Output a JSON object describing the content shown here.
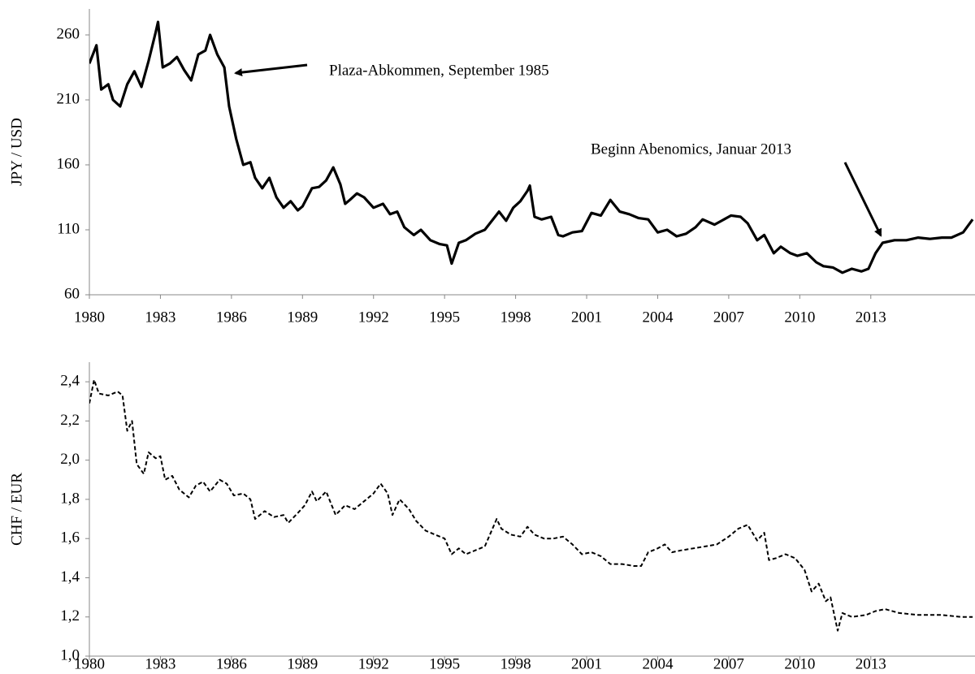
{
  "chart_data": [
    {
      "type": "line",
      "y_label": "JPY / USD",
      "x": [
        1980,
        1980.3,
        1980.5,
        1980.8,
        1981,
        1981.3,
        1981.6,
        1981.9,
        1982.2,
        1982.5,
        1982.8,
        1982.9,
        1983.1,
        1983.4,
        1983.7,
        1984,
        1984.3,
        1984.6,
        1984.9,
        1985.1,
        1985.4,
        1985.7,
        1985.9,
        1986.2,
        1986.5,
        1986.8,
        1987,
        1987.3,
        1987.6,
        1987.9,
        1988.2,
        1988.5,
        1988.8,
        1989,
        1989.4,
        1989.7,
        1990,
        1990.3,
        1990.6,
        1990.8,
        1991,
        1991.3,
        1991.6,
        1992,
        1992.4,
        1992.7,
        1993,
        1993.3,
        1993.7,
        1994,
        1994.4,
        1994.8,
        1995.1,
        1995.3,
        1995.6,
        1995.9,
        1996.3,
        1996.7,
        1997,
        1997.3,
        1997.6,
        1997.9,
        1998.2,
        1998.5,
        1998.6,
        1998.8,
        1999.1,
        1999.5,
        1999.8,
        2000,
        2000.4,
        2000.8,
        2001.2,
        2001.6,
        2002,
        2002.4,
        2002.8,
        2003.2,
        2003.6,
        2004,
        2004.4,
        2004.8,
        2005.2,
        2005.6,
        2005.9,
        2006.4,
        2006.8,
        2007.1,
        2007.5,
        2007.8,
        2008.2,
        2008.5,
        2008.9,
        2009.2,
        2009.6,
        2009.9,
        2010.3,
        2010.7,
        2011,
        2011.4,
        2011.8,
        2012.2,
        2012.6,
        2012.9,
        2013.2,
        2013.5,
        2014,
        2014.5,
        2015,
        2015.5,
        2016,
        2016.4,
        2016.9,
        2017.3
      ],
      "series": [
        {
          "color": "#000000",
          "style": "solid",
          "values": [
            238,
            252,
            218,
            222,
            210,
            205,
            222,
            232,
            220,
            240,
            262,
            270,
            235,
            238,
            243,
            233,
            225,
            245,
            248,
            260,
            245,
            235,
            205,
            180,
            160,
            162,
            150,
            142,
            150,
            135,
            127,
            132,
            125,
            128,
            142,
            143,
            148,
            158,
            145,
            130,
            133,
            138,
            135,
            127,
            130,
            122,
            124,
            112,
            106,
            110,
            102,
            99,
            98,
            84,
            100,
            102,
            107,
            110,
            117,
            124,
            117,
            127,
            132,
            140,
            144,
            120,
            118,
            120,
            106,
            105,
            108,
            109,
            123,
            121,
            133,
            124,
            122,
            119,
            118,
            108,
            110,
            105,
            107,
            112,
            118,
            114,
            118,
            121,
            120,
            115,
            102,
            106,
            92,
            97,
            92,
            90,
            92,
            85,
            82,
            81,
            77,
            80,
            78,
            80,
            92,
            100,
            102,
            102,
            104,
            103,
            104,
            104,
            108,
            118
          ]
        }
      ],
      "xlim": [
        1980,
        2017.4
      ],
      "xticks": [
        1980,
        1983,
        1986,
        1989,
        1992,
        1995,
        1998,
        2001,
        2004,
        2007,
        2010,
        2013
      ],
      "ylim": [
        60,
        280
      ],
      "yticks": [
        60,
        110,
        160,
        210,
        260
      ],
      "annotations": [
        "Plaza-Abkommen, September 1985",
        "Beginn Abenomics, Januar 2013"
      ]
    },
    {
      "type": "line",
      "y_label": "CHF / EUR",
      "x": [
        1980,
        1980.2,
        1980.4,
        1980.8,
        1981.2,
        1981.4,
        1981.6,
        1981.8,
        1982,
        1982.3,
        1982.5,
        1982.8,
        1983,
        1983.2,
        1983.5,
        1983.8,
        1984.2,
        1984.5,
        1984.8,
        1985.1,
        1985.5,
        1985.8,
        1986.1,
        1986.5,
        1986.8,
        1987,
        1987.4,
        1987.8,
        1988.2,
        1988.4,
        1988.8,
        1989.1,
        1989.4,
        1989.6,
        1990,
        1990.4,
        1990.8,
        1991.2,
        1991.6,
        1992,
        1992.3,
        1992.6,
        1992.8,
        1993.1,
        1993.5,
        1993.8,
        1994.2,
        1994.6,
        1995,
        1995.3,
        1995.6,
        1995.9,
        1996.3,
        1996.7,
        1997.2,
        1997.4,
        1997.8,
        1998.2,
        1998.5,
        1998.8,
        1999.2,
        1999.6,
        2000,
        2000.4,
        2000.8,
        2001.2,
        2001.6,
        2002,
        2002.5,
        2003,
        2003.3,
        2003.6,
        2004,
        2004.3,
        2004.6,
        2005,
        2005.5,
        2006,
        2006.5,
        2007,
        2007.4,
        2007.8,
        2008.2,
        2008.5,
        2008.7,
        2009,
        2009.4,
        2009.8,
        2010.2,
        2010.5,
        2010.8,
        2011.1,
        2011.3,
        2011.6,
        2011.8,
        2012.2,
        2012.8,
        2013.2,
        2013.6,
        2014.2,
        2015,
        2016,
        2016.8,
        2017.3
      ],
      "series": [
        {
          "color": "#000000",
          "style": "dashed",
          "values": [
            2.29,
            2.41,
            2.34,
            2.33,
            2.35,
            2.33,
            2.15,
            2.2,
            1.98,
            1.93,
            2.04,
            2.01,
            2.02,
            1.9,
            1.92,
            1.85,
            1.81,
            1.87,
            1.89,
            1.84,
            1.9,
            1.88,
            1.82,
            1.83,
            1.8,
            1.7,
            1.74,
            1.71,
            1.72,
            1.68,
            1.73,
            1.77,
            1.84,
            1.79,
            1.84,
            1.72,
            1.77,
            1.75,
            1.79,
            1.83,
            1.88,
            1.83,
            1.72,
            1.8,
            1.75,
            1.69,
            1.64,
            1.62,
            1.6,
            1.52,
            1.55,
            1.52,
            1.54,
            1.56,
            1.7,
            1.65,
            1.62,
            1.61,
            1.66,
            1.62,
            1.6,
            1.6,
            1.61,
            1.57,
            1.52,
            1.53,
            1.51,
            1.47,
            1.47,
            1.46,
            1.46,
            1.53,
            1.55,
            1.57,
            1.53,
            1.54,
            1.55,
            1.56,
            1.57,
            1.61,
            1.65,
            1.67,
            1.59,
            1.63,
            1.49,
            1.5,
            1.52,
            1.5,
            1.44,
            1.33,
            1.37,
            1.28,
            1.3,
            1.13,
            1.22,
            1.2,
            1.21,
            1.23,
            1.24,
            1.22,
            1.21,
            1.21,
            1.2,
            1.2
          ]
        }
      ],
      "xlim": [
        1980,
        2017.4
      ],
      "xticks": [
        1980,
        1983,
        1986,
        1989,
        1992,
        1995,
        1998,
        2001,
        2004,
        2007,
        2010,
        2013
      ],
      "ylim": [
        1.0,
        2.5
      ],
      "yticks": [
        {
          "value": 1.0,
          "label": "1,0"
        },
        {
          "value": 1.2,
          "label": "1,2"
        },
        {
          "value": 1.4,
          "label": "1,4"
        },
        {
          "value": 1.6,
          "label": "1,6"
        },
        {
          "value": 1.8,
          "label": "1,8"
        },
        {
          "value": 2.0,
          "label": "2,0"
        },
        {
          "value": 2.2,
          "label": "2,2"
        },
        {
          "value": 2.4,
          "label": "2,4"
        }
      ]
    }
  ]
}
